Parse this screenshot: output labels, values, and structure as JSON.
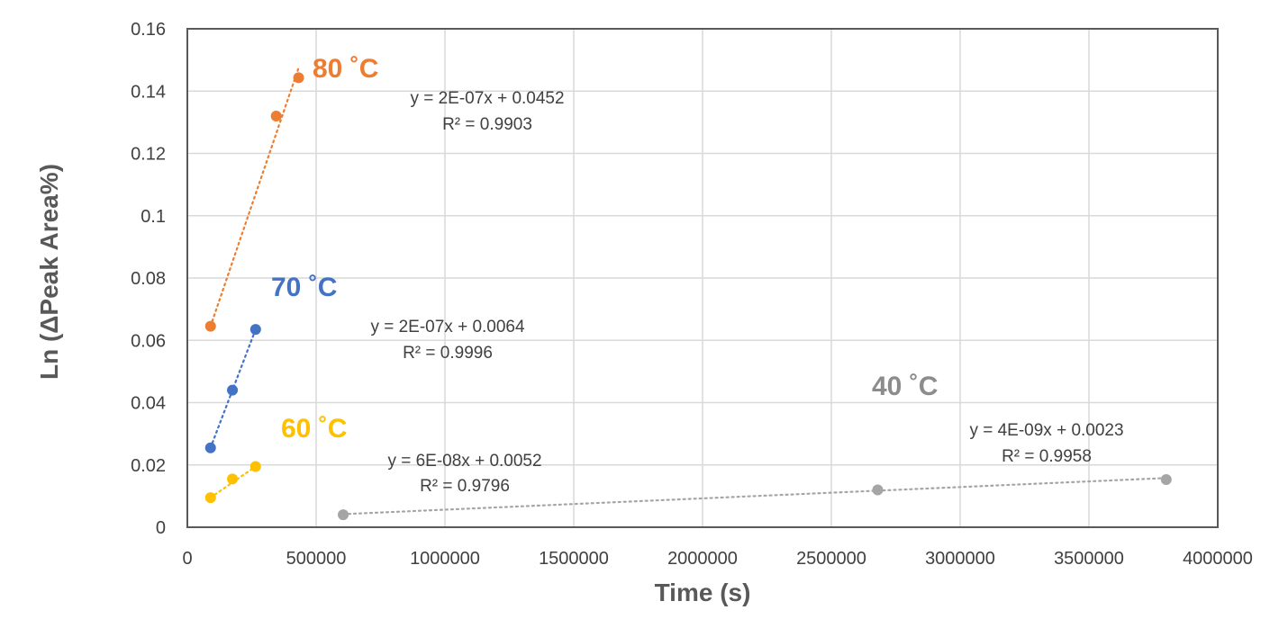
{
  "chart_data": {
    "type": "scatter",
    "xlabel": "Time (s)",
    "ylabel": "Ln (ΔPeak Area%)",
    "xlim": [
      0,
      4000000
    ],
    "ylim": [
      0,
      0.16
    ],
    "x_ticks": [
      0,
      500000,
      1000000,
      1500000,
      2000000,
      2500000,
      3000000,
      3500000,
      4000000
    ],
    "y_ticks": [
      0,
      0.02,
      0.04,
      0.06,
      0.08,
      0.1,
      0.12,
      0.14,
      0.16
    ],
    "x_tick_labels": [
      "0",
      "500000",
      "1000000",
      "1500000",
      "2000000",
      "2500000",
      "3000000",
      "3500000",
      "4000000"
    ],
    "y_tick_labels": [
      "0",
      "0.02",
      "0.04",
      "0.06",
      "0.08",
      "0.1",
      "0.12",
      "0.14",
      "0.16"
    ],
    "grid": true,
    "legend": "none",
    "series": [
      {
        "label": "80 ˚C",
        "color": "#ED7D31",
        "points": [
          [
            90000,
            0.0645
          ],
          [
            345000,
            0.132
          ],
          [
            432000,
            0.1443
          ]
        ],
        "trendline": {
          "x": [
            90000,
            432000
          ],
          "y": [
            0.0645,
            0.1475
          ]
        },
        "equation": "y = 2E-07x + 0.0452",
        "r2": "R² = 0.9903"
      },
      {
        "label": "70 ˚C",
        "color": "#4472C4",
        "points": [
          [
            90000,
            0.0255
          ],
          [
            175000,
            0.044
          ],
          [
            265000,
            0.0635
          ]
        ],
        "trendline": {
          "x": [
            90000,
            265000
          ],
          "y": [
            0.0255,
            0.0635
          ]
        },
        "equation": "y = 2E-07x + 0.0064",
        "r2": "R² = 0.9996"
      },
      {
        "label": "60 ˚C",
        "color": "#FFC000",
        "points": [
          [
            90000,
            0.0095
          ],
          [
            175000,
            0.0155
          ],
          [
            265000,
            0.0195
          ]
        ],
        "trendline": {
          "x": [
            90000,
            265000
          ],
          "y": [
            0.0095,
            0.0195
          ]
        },
        "equation": "y = 6E-08x + 0.0052",
        "r2": "R² = 0.9796"
      },
      {
        "label": "40 ˚C",
        "color": "#A5A5A5",
        "points": [
          [
            605000,
            0.004
          ],
          [
            2680000,
            0.012
          ],
          [
            3800000,
            0.0153
          ]
        ],
        "trendline": {
          "x": [
            605000,
            3800000
          ],
          "y": [
            0.0042,
            0.0158
          ]
        },
        "equation": "y = 4E-09x + 0.0023",
        "r2": "R² = 0.9958"
      }
    ],
    "label_colors": {
      "80 ˚C": "#ED7D31",
      "70 ˚C": "#4472C4",
      "60 ˚C": "#FFC000",
      "40 ˚C": "#8C8C8C"
    }
  }
}
